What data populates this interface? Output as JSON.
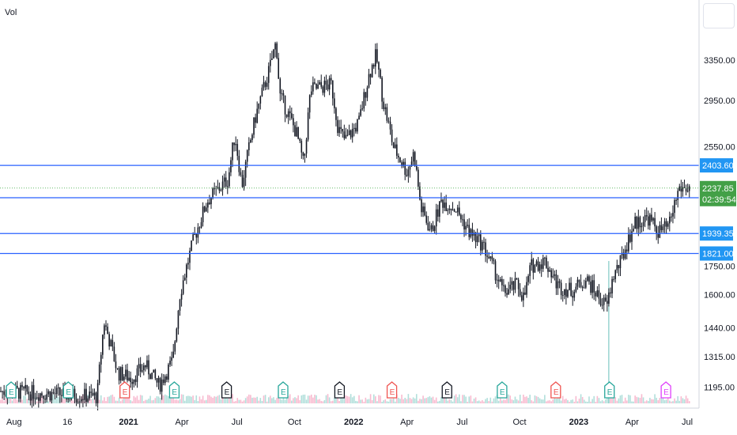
{
  "header": {
    "indicator_label": "Vol"
  },
  "colors": {
    "candle": "#131722",
    "level_line": "#2962ff",
    "price_badge": "#43a047",
    "level_badge": "#2196f3",
    "earn_green": "#26a69a",
    "earn_red": "#ef5350",
    "earn_dark": "#131722",
    "earn_magenta": "#e040fb",
    "grid_dotted": "#66bb6a"
  },
  "chart_data": {
    "type": "candlestick",
    "title": "",
    "x_ticks": [
      "Aug",
      "16",
      "2021",
      "Apr",
      "Jul",
      "Oct",
      "2022",
      "Apr",
      "Jul",
      "Oct",
      "2023",
      "Apr",
      "Jul"
    ],
    "x_ticks_bold": [
      false,
      false,
      true,
      false,
      false,
      false,
      true,
      false,
      false,
      false,
      true,
      false,
      false
    ],
    "y_ticks": [
      "3350.00",
      "2950.00",
      "2550.00",
      "1750.00",
      "1600.00",
      "1440.00",
      "1315.00",
      "1195.00"
    ],
    "y_tick_values": [
      3350,
      2950,
      2550,
      1750,
      1600,
      1440,
      1315,
      1195
    ],
    "y_scale": "log",
    "ylim": [
      1150,
      3850
    ],
    "horizontal_levels": [
      {
        "value": 2403.6,
        "label": "2403.60"
      },
      {
        "value": 2170.55,
        "label": "2170.55"
      },
      {
        "value": 1939.35,
        "label": "1939.35"
      },
      {
        "value": 1821.0,
        "label": "1821.00"
      }
    ],
    "last_price": {
      "value": 2237.85,
      "label": "2237.85",
      "countdown": "02:39:54"
    },
    "price_path": [
      [
        0,
        1180
      ],
      [
        0.08,
        1170
      ],
      [
        0.14,
        1160
      ],
      [
        0.15,
        1470
      ],
      [
        0.17,
        1250
      ],
      [
        0.19,
        1230
      ],
      [
        0.21,
        1280
      ],
      [
        0.23,
        1200
      ],
      [
        0.25,
        1300
      ],
      [
        0.26,
        1600
      ],
      [
        0.28,
        1900
      ],
      [
        0.3,
        2150
      ],
      [
        0.33,
        2300
      ],
      [
        0.34,
        2650
      ],
      [
        0.35,
        2250
      ],
      [
        0.37,
        2800
      ],
      [
        0.39,
        3250
      ],
      [
        0.4,
        3550
      ],
      [
        0.405,
        3000
      ],
      [
        0.43,
        2650
      ],
      [
        0.44,
        2400
      ],
      [
        0.45,
        3050
      ],
      [
        0.48,
        3100
      ],
      [
        0.49,
        2700
      ],
      [
        0.5,
        2600
      ],
      [
        0.52,
        2750
      ],
      [
        0.535,
        3200
      ],
      [
        0.545,
        3400
      ],
      [
        0.555,
        2950
      ],
      [
        0.57,
        2550
      ],
      [
        0.59,
        2350
      ],
      [
        0.6,
        2500
      ],
      [
        0.61,
        2100
      ],
      [
        0.625,
        1950
      ],
      [
        0.64,
        2150
      ],
      [
        0.66,
        2100
      ],
      [
        0.68,
        1950
      ],
      [
        0.7,
        1870
      ],
      [
        0.72,
        1700
      ],
      [
        0.73,
        1610
      ],
      [
        0.75,
        1650
      ],
      [
        0.76,
        1580
      ],
      [
        0.77,
        1750
      ],
      [
        0.79,
        1780
      ],
      [
        0.81,
        1640
      ],
      [
        0.83,
        1620
      ],
      [
        0.85,
        1680
      ],
      [
        0.87,
        1580
      ],
      [
        0.88,
        1540
      ],
      [
        0.89,
        1700
      ],
      [
        0.9,
        1770
      ],
      [
        0.92,
        2000
      ],
      [
        0.94,
        2040
      ],
      [
        0.955,
        1950
      ],
      [
        0.97,
        1980
      ],
      [
        0.985,
        2237
      ]
    ],
    "volume_spike_position": 0.883,
    "earnings_markers": [
      {
        "label": "E",
        "type": "green",
        "pos": 0.015
      },
      {
        "label": "E",
        "type": "green",
        "pos": 0.098
      },
      {
        "label": "E",
        "type": "red",
        "pos": 0.18
      },
      {
        "label": "E",
        "type": "green",
        "pos": 0.252
      },
      {
        "label": "E",
        "type": "dark",
        "pos": 0.328
      },
      {
        "label": "E",
        "type": "green",
        "pos": 0.41
      },
      {
        "label": "E",
        "type": "dark",
        "pos": 0.492
      },
      {
        "label": "E",
        "type": "red",
        "pos": 0.568
      },
      {
        "label": "E",
        "type": "dark",
        "pos": 0.648
      },
      {
        "label": "E",
        "type": "green",
        "pos": 0.728
      },
      {
        "label": "E",
        "type": "red",
        "pos": 0.806
      },
      {
        "label": "E",
        "type": "green",
        "pos": 0.884
      },
      {
        "label": "E",
        "type": "magenta",
        "pos": 0.966
      }
    ]
  }
}
